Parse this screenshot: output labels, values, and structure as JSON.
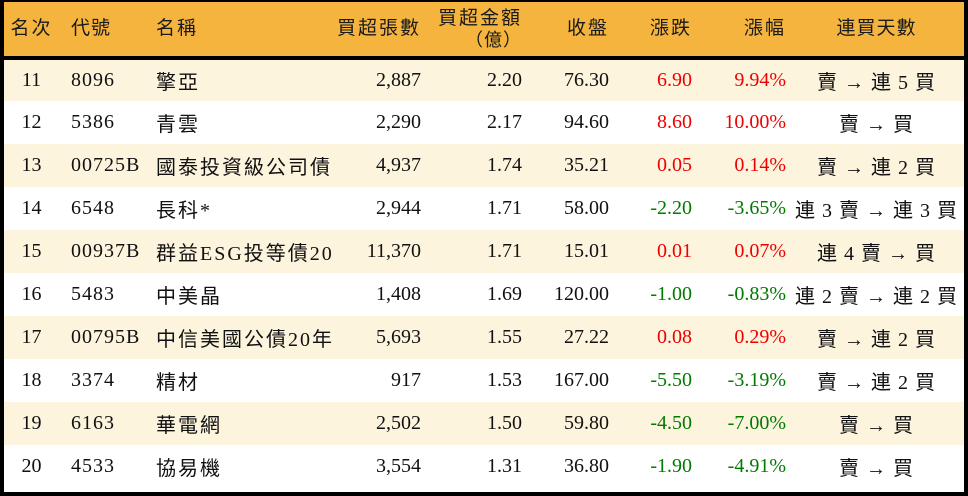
{
  "colors": {
    "header_bg": "#F5B43E",
    "row_alt_bg": "#FDF4DE",
    "row_bg": "#FFFFFF",
    "border": "#000000",
    "up_text": "#EE0000",
    "down_text": "#007A00"
  },
  "chart_data": {
    "type": "table",
    "title": "",
    "columns": [
      {
        "id": "rank",
        "label": "名次"
      },
      {
        "id": "code",
        "label": "代號"
      },
      {
        "id": "name",
        "label": "名稱"
      },
      {
        "id": "volume",
        "label": "買超張數"
      },
      {
        "id": "amount",
        "label": "買超金額",
        "sublabel": "（億）"
      },
      {
        "id": "close",
        "label": "收盤"
      },
      {
        "id": "change",
        "label": "漲跌"
      },
      {
        "id": "pct",
        "label": "漲幅"
      },
      {
        "id": "streak",
        "label": "連買天數"
      }
    ],
    "rows": [
      {
        "rank": "11",
        "code": "8096",
        "name": "擎亞",
        "volume": "2,887",
        "amount": "2.20",
        "close": "76.30",
        "change": "6.90",
        "pct": "9.94%",
        "streak": "賣 → 連 5 買",
        "trend": "up"
      },
      {
        "rank": "12",
        "code": "5386",
        "name": "青雲",
        "volume": "2,290",
        "amount": "2.17",
        "close": "94.60",
        "change": "8.60",
        "pct": "10.00%",
        "streak": "賣 → 買",
        "trend": "up"
      },
      {
        "rank": "13",
        "code": "00725B",
        "name": "國泰投資級公司債",
        "volume": "4,937",
        "amount": "1.74",
        "close": "35.21",
        "change": "0.05",
        "pct": "0.14%",
        "streak": "賣 → 連 2 買",
        "trend": "up"
      },
      {
        "rank": "14",
        "code": "6548",
        "name": "長科*",
        "volume": "2,944",
        "amount": "1.71",
        "close": "58.00",
        "change": "-2.20",
        "pct": "-3.65%",
        "streak": "連 3 賣 → 連 3 買",
        "trend": "down"
      },
      {
        "rank": "15",
        "code": "00937B",
        "name": "群益ESG投等債20",
        "volume": "11,370",
        "amount": "1.71",
        "close": "15.01",
        "change": "0.01",
        "pct": "0.07%",
        "streak": "連 4 賣 → 買",
        "trend": "up"
      },
      {
        "rank": "16",
        "code": "5483",
        "name": "中美晶",
        "volume": "1,408",
        "amount": "1.69",
        "close": "120.00",
        "change": "-1.00",
        "pct": "-0.83%",
        "streak": "連 2 賣 → 連 2 買",
        "trend": "down"
      },
      {
        "rank": "17",
        "code": "00795B",
        "name": "中信美國公債20年",
        "volume": "5,693",
        "amount": "1.55",
        "close": "27.22",
        "change": "0.08",
        "pct": "0.29%",
        "streak": "賣 → 連 2 買",
        "trend": "up"
      },
      {
        "rank": "18",
        "code": "3374",
        "name": "精材",
        "volume": "917",
        "amount": "1.53",
        "close": "167.00",
        "change": "-5.50",
        "pct": "-3.19%",
        "streak": "賣 → 連 2 買",
        "trend": "down"
      },
      {
        "rank": "19",
        "code": "6163",
        "name": "華電網",
        "volume": "2,502",
        "amount": "1.50",
        "close": "59.80",
        "change": "-4.50",
        "pct": "-7.00%",
        "streak": "賣 → 買",
        "trend": "down"
      },
      {
        "rank": "20",
        "code": "4533",
        "name": "協易機",
        "volume": "3,554",
        "amount": "1.31",
        "close": "36.80",
        "change": "-1.90",
        "pct": "-4.91%",
        "streak": "賣 → 買",
        "trend": "down"
      }
    ]
  }
}
